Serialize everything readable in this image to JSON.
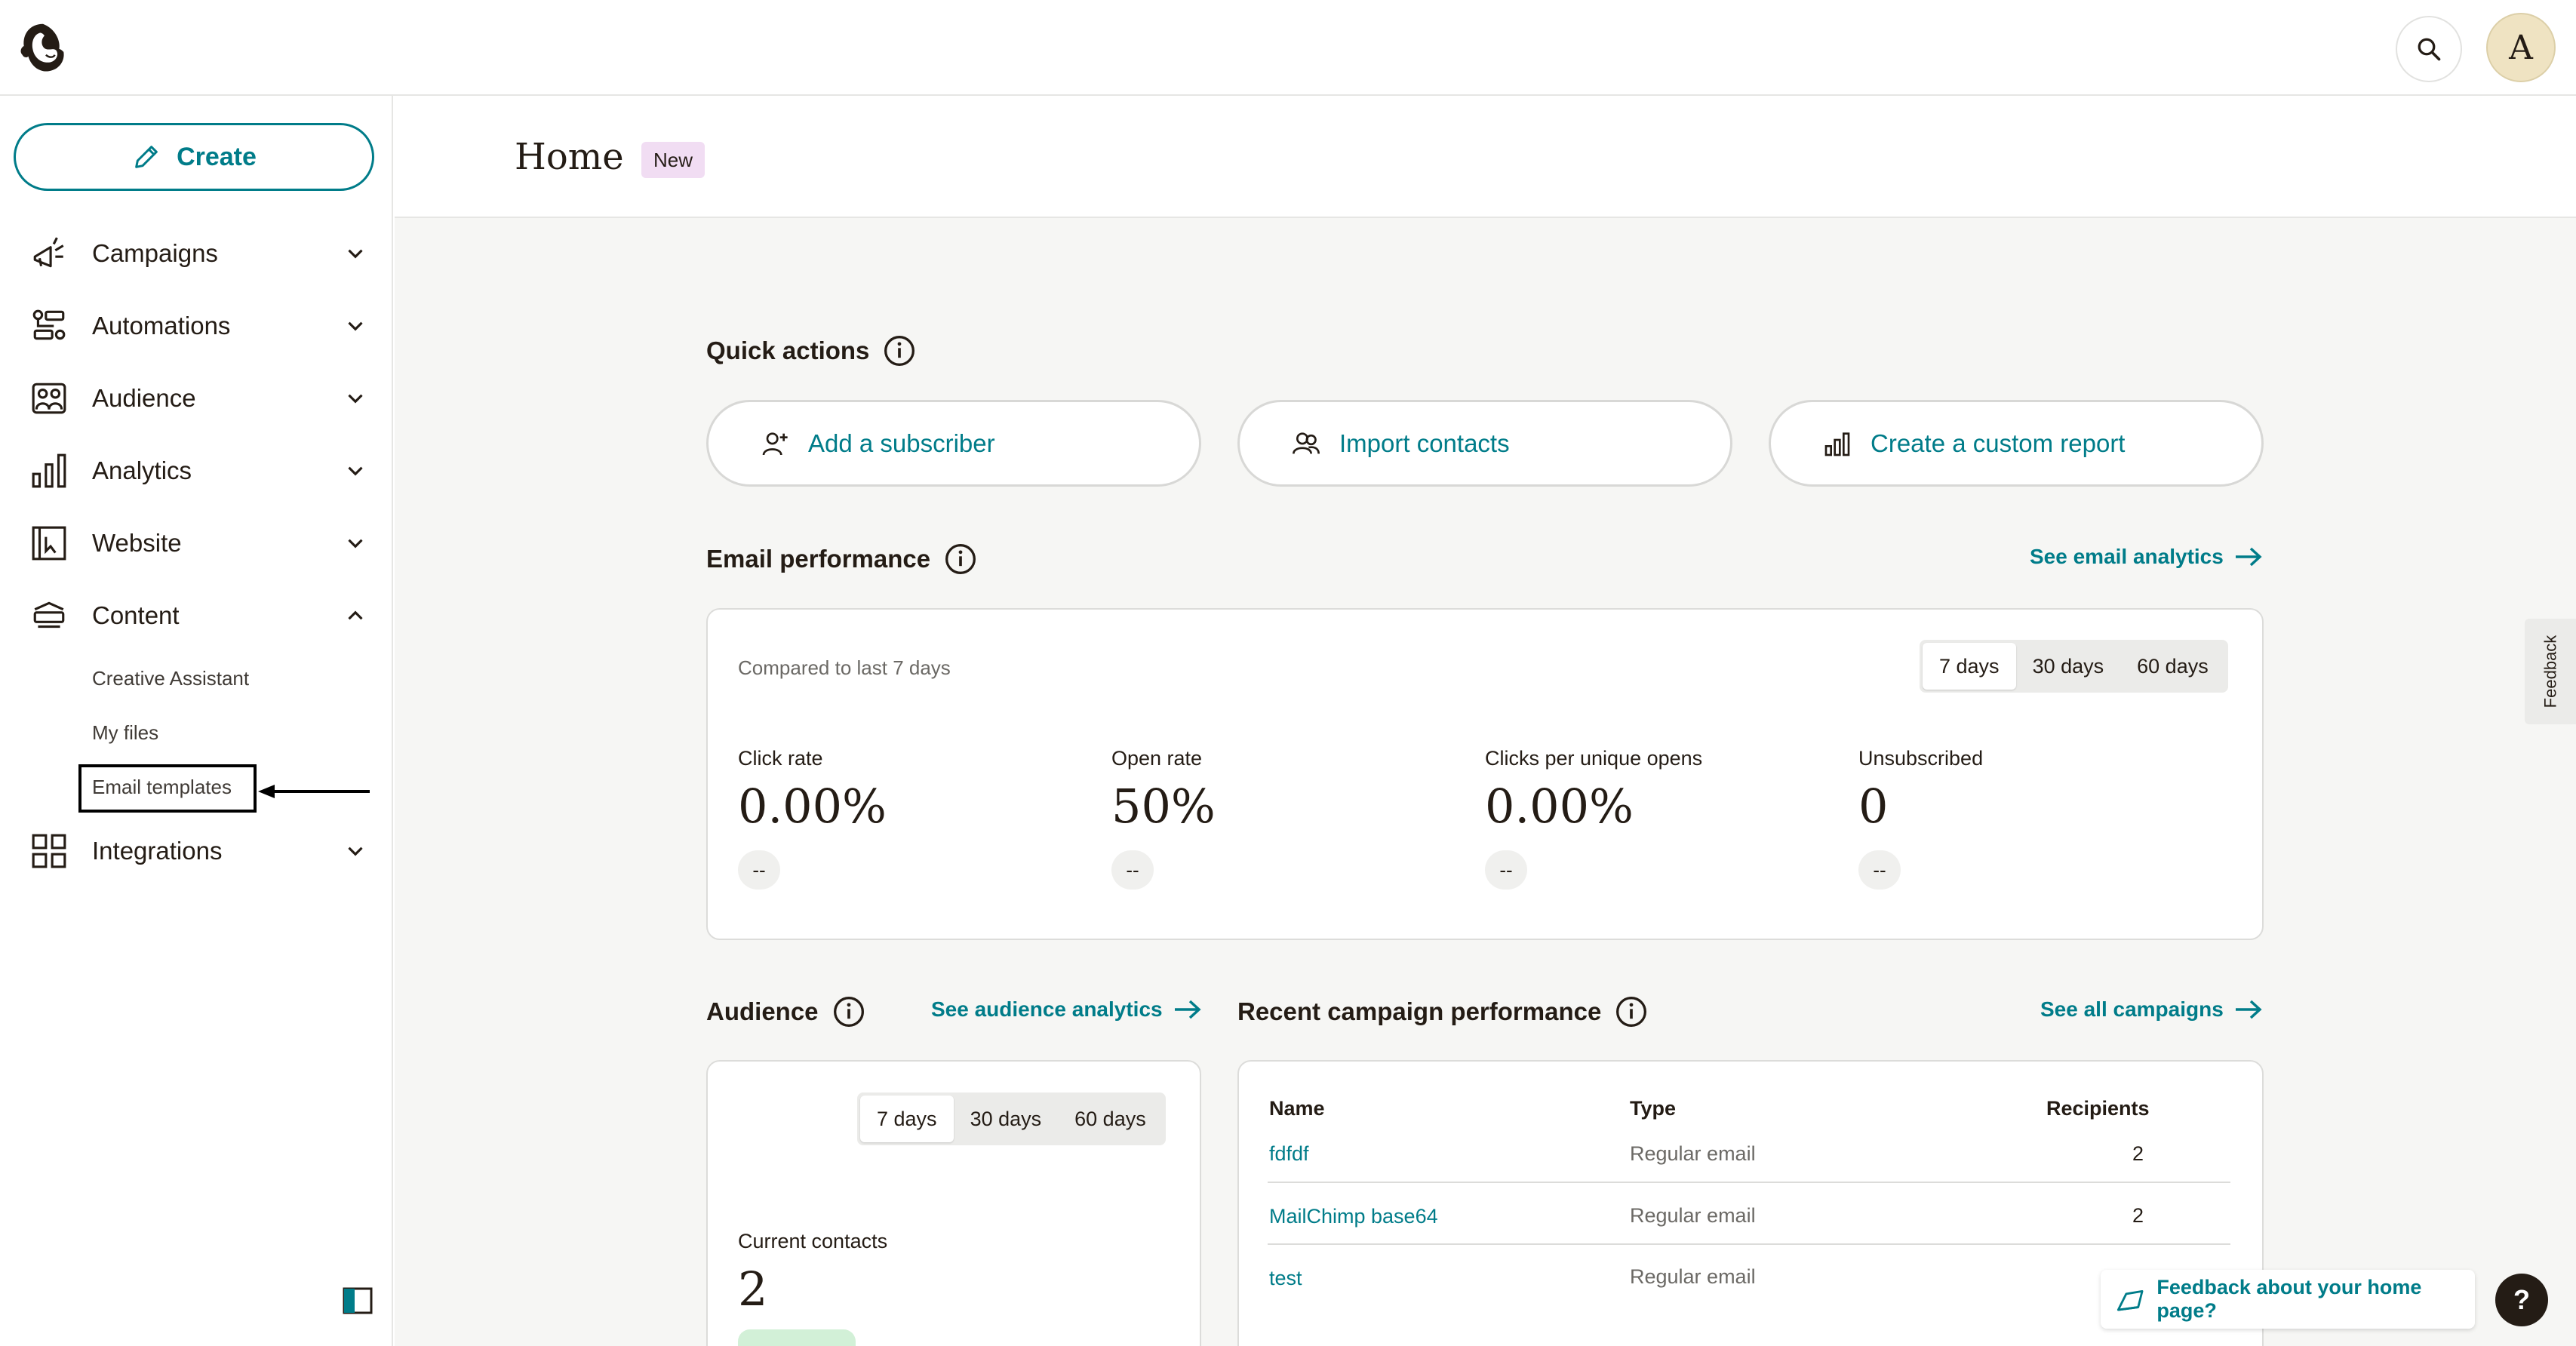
{
  "sidebar": {
    "create_label": "Create",
    "items": [
      {
        "label": "Campaigns",
        "icon": "megaphone-icon"
      },
      {
        "label": "Automations",
        "icon": "automation-flow-icon"
      },
      {
        "label": "Audience",
        "icon": "audience-icon"
      },
      {
        "label": "Analytics",
        "icon": "bar-chart-icon"
      },
      {
        "label": "Website",
        "icon": "website-icon"
      },
      {
        "label": "Content",
        "icon": "content-icon"
      },
      {
        "label": "Integrations",
        "icon": "grid-icon"
      }
    ],
    "content_subitems": [
      "Creative Assistant",
      "My files",
      "Email templates"
    ]
  },
  "header": {
    "title": "Home",
    "badge": "New"
  },
  "quick_actions": {
    "title": "Quick actions",
    "buttons": [
      "Add a subscriber",
      "Import contacts",
      "Create a custom report"
    ]
  },
  "email_performance": {
    "title": "Email performance",
    "link": "See email analytics",
    "compared": "Compared to last 7 days",
    "ranges": [
      "7 days",
      "30 days",
      "60 days"
    ],
    "metrics": [
      {
        "label": "Click rate",
        "value": "0.00%",
        "change": "--"
      },
      {
        "label": "Open rate",
        "value": "50%",
        "change": "--"
      },
      {
        "label": "Clicks per unique opens",
        "value": "0.00%",
        "change": "--"
      },
      {
        "label": "Unsubscribed",
        "value": "0",
        "change": "--"
      }
    ]
  },
  "audience": {
    "title": "Audience",
    "link": "See audience analytics",
    "ranges": [
      "7 days",
      "30 days",
      "60 days"
    ],
    "current_label": "Current contacts",
    "current_value": "2"
  },
  "recent": {
    "title": "Recent campaign performance",
    "link": "See all campaigns",
    "columns": [
      "Name",
      "Type",
      "Recipients"
    ],
    "rows": [
      {
        "name": "fdfdf",
        "type": "Regular email",
        "recipients": "2"
      },
      {
        "name": "MailChimp base64",
        "type": "Regular email",
        "recipients": "2"
      },
      {
        "name": "test",
        "type": "Regular email",
        "recipients": ""
      }
    ]
  },
  "feedback_tab": "Feedback",
  "home_feedback": "Feedback about your home page?",
  "help": "?",
  "avatar_letter": "A",
  "colors": {
    "accent": "#007c89",
    "text": "#241c15",
    "background": "#f6f6f4",
    "badge": "#f1ddf3"
  }
}
